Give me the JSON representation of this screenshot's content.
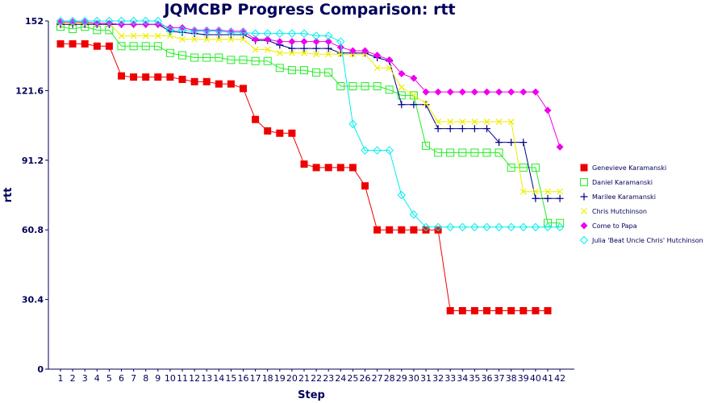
{
  "chart_data": {
    "type": "line",
    "title": "JQMCBP Progress Comparison: rtt",
    "xlabel": "Step",
    "ylabel": "rtt",
    "x": [
      1,
      2,
      3,
      4,
      5,
      6,
      7,
      8,
      9,
      10,
      11,
      12,
      13,
      14,
      15,
      16,
      17,
      18,
      19,
      20,
      21,
      22,
      23,
      24,
      25,
      26,
      27,
      28,
      29,
      30,
      31,
      32,
      33,
      34,
      35,
      36,
      37,
      38,
      39,
      40,
      41,
      42
    ],
    "xticks": [
      "1",
      "2",
      "3",
      "4",
      "5",
      "6",
      "7",
      "8",
      "9",
      "10",
      "11",
      "12",
      "13",
      "14",
      "15",
      "16",
      "17",
      "18",
      "19",
      "20",
      "21",
      "22",
      "23",
      "24",
      "25",
      "26",
      "27",
      "28",
      "29",
      "30",
      "31",
      "32",
      "33",
      "34",
      "35",
      "36",
      "37",
      "38",
      "39",
      "40",
      "41",
      "42"
    ],
    "yticks": [
      "0",
      "30.4",
      "60.8",
      "91.2",
      "121.6",
      "152"
    ],
    "ylim": [
      0,
      152
    ],
    "grid": false,
    "legend_position": "right",
    "series": [
      {
        "name": "Genevieve Karamanski",
        "color": "#ee0000",
        "marker": "filled-square",
        "values": [
          142,
          142,
          142,
          141,
          141,
          128,
          127.5,
          127.5,
          127.5,
          127.5,
          126.5,
          125.5,
          125.5,
          124.5,
          124.5,
          122.5,
          109,
          104,
          103,
          103,
          89.5,
          88,
          88,
          88,
          88,
          80,
          60.8,
          60.8,
          60.8,
          60.8,
          60.8,
          60.8,
          25.5,
          25.5,
          25.5,
          25.5,
          25.5,
          25.5,
          25.5,
          25.5,
          25.5,
          null
        ]
      },
      {
        "name": "Daniel Karamanski",
        "color": "#22ee22",
        "marker": "open-square",
        "values": [
          149.5,
          148.5,
          149.5,
          148,
          148,
          141,
          141,
          141,
          141,
          138,
          137,
          136,
          136,
          136,
          135,
          135,
          134.5,
          134.5,
          131.5,
          130.5,
          130.5,
          129.5,
          129.5,
          123.5,
          123.5,
          123.5,
          123.5,
          122,
          119.5,
          119.5,
          97.5,
          94.5,
          94.5,
          94.5,
          94.5,
          94.5,
          94.5,
          88,
          88,
          88,
          63.8,
          63.8
        ]
      },
      {
        "name": "Marilee Karamanski",
        "color": "#00008b",
        "marker": "plus",
        "values": [
          150.5,
          150.5,
          150.5,
          150.5,
          150.5,
          150.5,
          150.5,
          150.5,
          150.5,
          147.5,
          147,
          146.5,
          146,
          146,
          146,
          146,
          143.5,
          143.5,
          141.5,
          140,
          140,
          140,
          140,
          138,
          138,
          138,
          136,
          134.5,
          115.5,
          115.5,
          115.5,
          105,
          105,
          105,
          105,
          105,
          99,
          99,
          99,
          74.5,
          74.5,
          74.5
        ]
      },
      {
        "name": "Chris Hutchinson",
        "color": "#eeee00",
        "marker": "x",
        "values": [
          151,
          151,
          151,
          151,
          151,
          145.5,
          145.5,
          145.5,
          145.5,
          145.5,
          144,
          144,
          144,
          144,
          144,
          144,
          139.5,
          139.5,
          138,
          138,
          138,
          137.5,
          137.5,
          137.5,
          137.5,
          137.5,
          131.5,
          131.5,
          123,
          119.5,
          116,
          108,
          108,
          108,
          108,
          108,
          108,
          108,
          77.5,
          77.5,
          77.5,
          77.5
        ]
      },
      {
        "name": "Come to Papa",
        "color": "#ee00ee",
        "marker": "diamond",
        "values": [
          151.5,
          151.5,
          151.5,
          151,
          151,
          150.5,
          150.5,
          150.5,
          150.5,
          149,
          149,
          148,
          148,
          148,
          147.5,
          147.5,
          144,
          144,
          143,
          143,
          143,
          143,
          143,
          140.5,
          139,
          139,
          137,
          135,
          129,
          127,
          121,
          121,
          121,
          121,
          121,
          121,
          121,
          121,
          121,
          121,
          113,
          97
        ]
      },
      {
        "name": "Julia 'Beat Uncle Chris' Hutchinson",
        "color": "#00eeee",
        "marker": "open-diamond",
        "values": [
          152,
          152,
          152,
          152,
          152,
          152,
          152,
          152,
          152,
          148,
          148,
          147.5,
          147.5,
          147.5,
          147,
          147,
          146.5,
          146.5,
          146.5,
          146.5,
          146.5,
          145.5,
          145.5,
          143,
          107,
          95.5,
          95.5,
          95.5,
          76,
          67.5,
          62,
          62,
          62,
          62,
          62,
          62,
          62,
          62,
          62,
          62,
          62,
          62
        ]
      }
    ]
  }
}
